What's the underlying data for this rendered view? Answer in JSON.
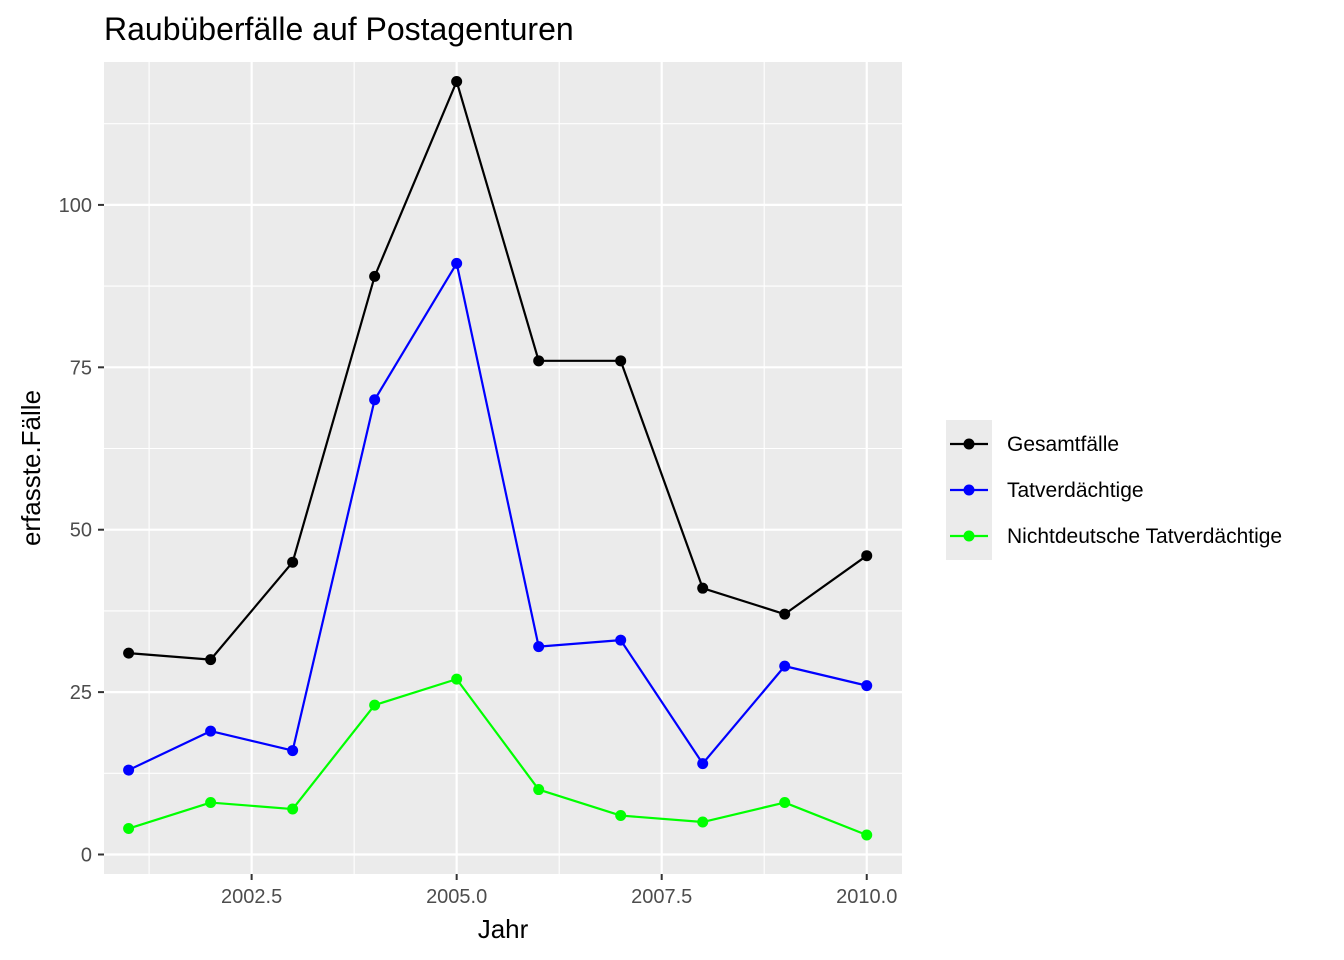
{
  "chart_data": {
    "type": "line",
    "title": "Raubüberfälle auf Postagenturen",
    "xlabel": "Jahr",
    "ylabel": "erfasste.Fälle",
    "x": [
      2001,
      2002,
      2003,
      2004,
      2005,
      2006,
      2007,
      2008,
      2009,
      2010
    ],
    "xlim": [
      2000.7,
      2010.43
    ],
    "ylim": [
      -3,
      122
    ],
    "x_ticks": [
      2002.5,
      2005.0,
      2007.5,
      2010.0
    ],
    "x_tick_labels": [
      "2002.5",
      "2005.0",
      "2007.5",
      "2010.0"
    ],
    "y_ticks": [
      0,
      25,
      50,
      75,
      100
    ],
    "y_tick_labels": [
      "0",
      "25",
      "50",
      "75",
      "100"
    ],
    "grid": true,
    "legend_position": "right",
    "series": [
      {
        "name": "Gesamtfälle",
        "color": "#000000",
        "values": [
          31,
          30,
          45,
          89,
          119,
          76,
          76,
          41,
          37,
          46
        ]
      },
      {
        "name": "Tatverdächtige",
        "color": "#0000ff",
        "values": [
          13,
          19,
          16,
          70,
          91,
          32,
          33,
          14,
          29,
          26
        ]
      },
      {
        "name": "Nichtdeutsche Tatverdächtige",
        "color": "#00ff00",
        "values": [
          4,
          8,
          7,
          23,
          27,
          10,
          6,
          5,
          8,
          3
        ]
      }
    ]
  }
}
